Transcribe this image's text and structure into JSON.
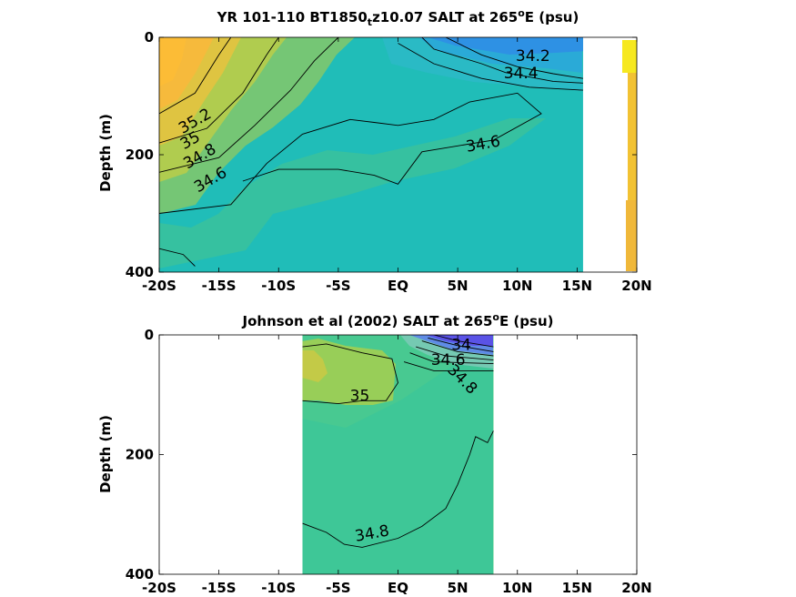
{
  "chart_data": [
    {
      "type": "contour",
      "title_prefix": "YR 101-110 BT1850",
      "title_sub": "t",
      "title_mid": "z10.07 SALT at 265",
      "title_sup": "o",
      "title_suffix": "E (psu)",
      "xlabel": "",
      "ylabel": "Depth (m)",
      "x_ticks": [
        "-20S",
        "-15S",
        "-10S",
        "-5S",
        "EQ",
        "5N",
        "10N",
        "15N",
        "20N"
      ],
      "y_ticks": [
        "0",
        "200",
        "400"
      ],
      "xlim": [
        -20,
        20
      ],
      "ylim": [
        400,
        0
      ],
      "grid": false,
      "contour_labels": [
        {
          "text": "34.2",
          "lat": 11.3,
          "depth": 40
        },
        {
          "text": "34.4",
          "lat": 10.3,
          "depth": 70
        },
        {
          "text": "35.2",
          "lat": -16.8,
          "depth": 150
        },
        {
          "text": "35",
          "lat": -17.2,
          "depth": 183
        },
        {
          "text": "34.8",
          "lat": -16.4,
          "depth": 210
        },
        {
          "text": "34.6",
          "lat": -15.5,
          "depth": 250
        },
        {
          "text": "34.6",
          "lat": 7.2,
          "depth": 190
        }
      ],
      "contour_lines": [
        [
          [
            -20,
            130
          ],
          [
            -17,
            95
          ],
          [
            -15,
            30
          ],
          [
            -14,
            0
          ]
        ],
        [
          [
            -20,
            180
          ],
          [
            -16,
            155
          ],
          [
            -13,
            95
          ],
          [
            -11,
            30
          ],
          [
            -10,
            0
          ]
        ],
        [
          [
            -20,
            230
          ],
          [
            -15,
            205
          ],
          [
            -12,
            150
          ],
          [
            -9,
            90
          ],
          [
            -7,
            40
          ],
          [
            -5,
            0
          ]
        ],
        [
          [
            -20,
            300
          ],
          [
            -14,
            285
          ],
          [
            -11,
            215
          ],
          [
            -8,
            165
          ],
          [
            -4,
            140
          ],
          [
            -2,
            145
          ],
          [
            0,
            150
          ],
          [
            3,
            140
          ],
          [
            6,
            110
          ],
          [
            10,
            95
          ],
          [
            12,
            130
          ],
          [
            8,
            175
          ],
          [
            5,
            185
          ],
          [
            2,
            195
          ],
          [
            0,
            250
          ],
          [
            -2,
            235
          ],
          [
            -5,
            225
          ],
          [
            -10,
            225
          ],
          [
            -13,
            245
          ]
        ],
        [
          [
            -20,
            360
          ],
          [
            -18,
            370
          ],
          [
            -17,
            390
          ]
        ],
        [
          [
            4,
            0
          ],
          [
            7,
            30
          ],
          [
            10,
            50
          ],
          [
            13,
            62
          ],
          [
            15.5,
            70
          ]
        ],
        [
          [
            2,
            0
          ],
          [
            3,
            20
          ],
          [
            7,
            45
          ],
          [
            9,
            60
          ],
          [
            13,
            75
          ],
          [
            15.5,
            78
          ]
        ],
        [
          [
            0,
            10
          ],
          [
            3,
            45
          ],
          [
            7,
            70
          ],
          [
            11,
            85
          ],
          [
            15.5,
            90
          ]
        ]
      ],
      "side_strip": {
        "lat_from": 19.2,
        "lat_to": 20,
        "color": "#f1c334"
      }
    },
    {
      "type": "contour",
      "title_prefix": "Johnson et al (2002) SALT at 265",
      "title_sup": "o",
      "title_suffix": "E (psu)",
      "xlabel": "",
      "ylabel": "Depth (m)",
      "x_ticks": [
        "-20S",
        "-15S",
        "-10S",
        "-5S",
        "EQ",
        "5N",
        "10N",
        "15N",
        "20N"
      ],
      "y_ticks": [
        "0",
        "200",
        "400"
      ],
      "xlim": [
        -20,
        20
      ],
      "ylim": [
        400,
        0
      ],
      "grid": false,
      "data_extent": {
        "lat_min": -8,
        "lat_max": 8
      },
      "contour_labels": [
        {
          "text": "34",
          "lat": 5.3,
          "depth": 25
        },
        {
          "text": "34.6",
          "lat": 4.2,
          "depth": 50
        },
        {
          "text": "34.8",
          "lat": 5.1,
          "depth": 80
        },
        {
          "text": "35",
          "lat": -3.2,
          "depth": 110
        },
        {
          "text": "34.8",
          "lat": -2.1,
          "depth": 340
        }
      ],
      "contour_lines": [
        [
          [
            -8,
            20
          ],
          [
            -6,
            15
          ],
          [
            -3,
            30
          ],
          [
            -0.5,
            40
          ],
          [
            0,
            80
          ],
          [
            -1,
            110
          ],
          [
            -3,
            110
          ],
          [
            -5,
            115
          ],
          [
            -8,
            110
          ]
        ],
        [
          [
            3,
            0
          ],
          [
            5,
            10
          ],
          [
            8,
            20
          ]
        ],
        [
          [
            2.5,
            5
          ],
          [
            5,
            18
          ],
          [
            8,
            28
          ]
        ],
        [
          [
            2,
            10
          ],
          [
            5,
            28
          ],
          [
            8,
            35
          ]
        ],
        [
          [
            1.5,
            20
          ],
          [
            4,
            35
          ],
          [
            8,
            42
          ]
        ],
        [
          [
            1,
            30
          ],
          [
            3,
            45
          ],
          [
            8,
            48
          ]
        ],
        [
          [
            0.5,
            45
          ],
          [
            3,
            60
          ],
          [
            8,
            60
          ]
        ],
        [
          [
            -8,
            315
          ],
          [
            -6,
            330
          ],
          [
            -4.5,
            350
          ],
          [
            -3,
            355
          ],
          [
            0,
            340
          ],
          [
            2,
            320
          ],
          [
            4,
            290
          ],
          [
            5,
            250
          ],
          [
            6,
            200
          ],
          [
            6.5,
            170
          ],
          [
            7.5,
            180
          ],
          [
            8,
            160
          ]
        ]
      ]
    }
  ]
}
